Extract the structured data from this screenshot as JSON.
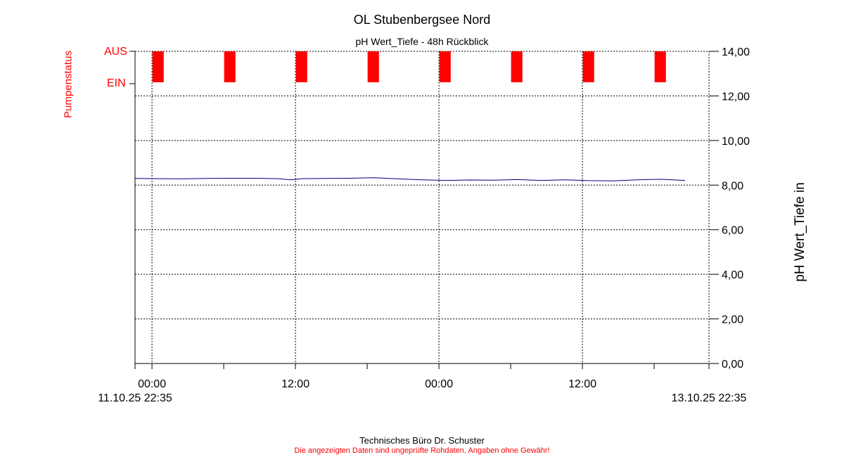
{
  "chart_data": {
    "type": "line",
    "title": "OL Stubenbergsee Nord",
    "subtitle": "pH Wert_Tiefe - 48h Rückblick",
    "ylabel_right": "pH Wert_Tiefe in",
    "ylabel_left": "Pumpenstatus",
    "status_labels": {
      "on": "EIN",
      "off": "AUS"
    },
    "ylim": [
      0,
      14
    ],
    "y_ticks": [
      "0,00",
      "2,00",
      "4,00",
      "6,00",
      "8,00",
      "10,00",
      "12,00",
      "14,00"
    ],
    "x_range_hours": [
      0,
      48
    ],
    "x_ticks": [
      {
        "hour": 1.417,
        "label": "00:00"
      },
      {
        "hour": 13.417,
        "label": "12:00"
      },
      {
        "hour": 25.417,
        "label": "00:00"
      },
      {
        "hour": 37.417,
        "label": "12:00"
      }
    ],
    "x_minor_ticks_hour": [
      7.417,
      19.417,
      31.417,
      43.417
    ],
    "start_label": "11.10.25 22:35",
    "end_label": "13.10.25 22:35",
    "grid": true,
    "series": [
      {
        "color": "#000080",
        "x": [
          0,
          2,
          4,
          6,
          8,
          10,
          12,
          13,
          14,
          16,
          18,
          20,
          22,
          24,
          26,
          28,
          30,
          32,
          34,
          36,
          38,
          40,
          42,
          44,
          46
        ],
        "values": [
          8.3,
          8.29,
          8.28,
          8.3,
          8.31,
          8.31,
          8.29,
          8.24,
          8.29,
          8.3,
          8.31,
          8.33,
          8.28,
          8.24,
          8.21,
          8.23,
          8.22,
          8.25,
          8.21,
          8.24,
          8.2,
          8.19,
          8.24,
          8.26,
          8.21
        ]
      }
    ],
    "pump_on_intervals_hour": [
      [
        1.45,
        2.4
      ],
      [
        7.45,
        8.4
      ],
      [
        13.45,
        14.4
      ],
      [
        19.45,
        20.4
      ],
      [
        25.45,
        26.4
      ],
      [
        31.45,
        32.4
      ],
      [
        37.45,
        38.4
      ],
      [
        43.45,
        44.4
      ]
    ],
    "pump_color": "#ff0000"
  },
  "footer": {
    "company": "Technisches Büro Dr. Schuster",
    "disclaimer": "Die angezeigten Daten sind ungeprüfte Rohdaten, Angaben ohne Gewähr!"
  }
}
